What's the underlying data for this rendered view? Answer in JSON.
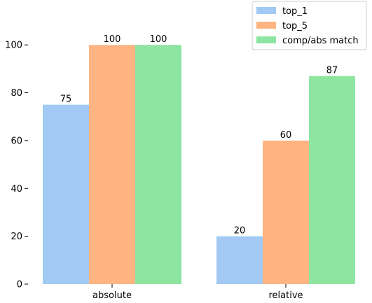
{
  "chart_data": {
    "type": "bar",
    "categories": [
      "absolute",
      "relative"
    ],
    "series": [
      {
        "name": "top_1",
        "values": [
          75,
          20
        ],
        "color": "#a1c9f4"
      },
      {
        "name": "top_5",
        "values": [
          100,
          60
        ],
        "color": "#ffb482"
      },
      {
        "name": "comp/abs match",
        "values": [
          100,
          87
        ],
        "color": "#8de5a1"
      }
    ],
    "yticks": [
      0,
      20,
      40,
      60,
      80,
      100
    ],
    "ylim": [
      0,
      110
    ],
    "grid": false,
    "legend_position": "top-right",
    "title": "",
    "xlabel": "",
    "ylabel": ""
  }
}
